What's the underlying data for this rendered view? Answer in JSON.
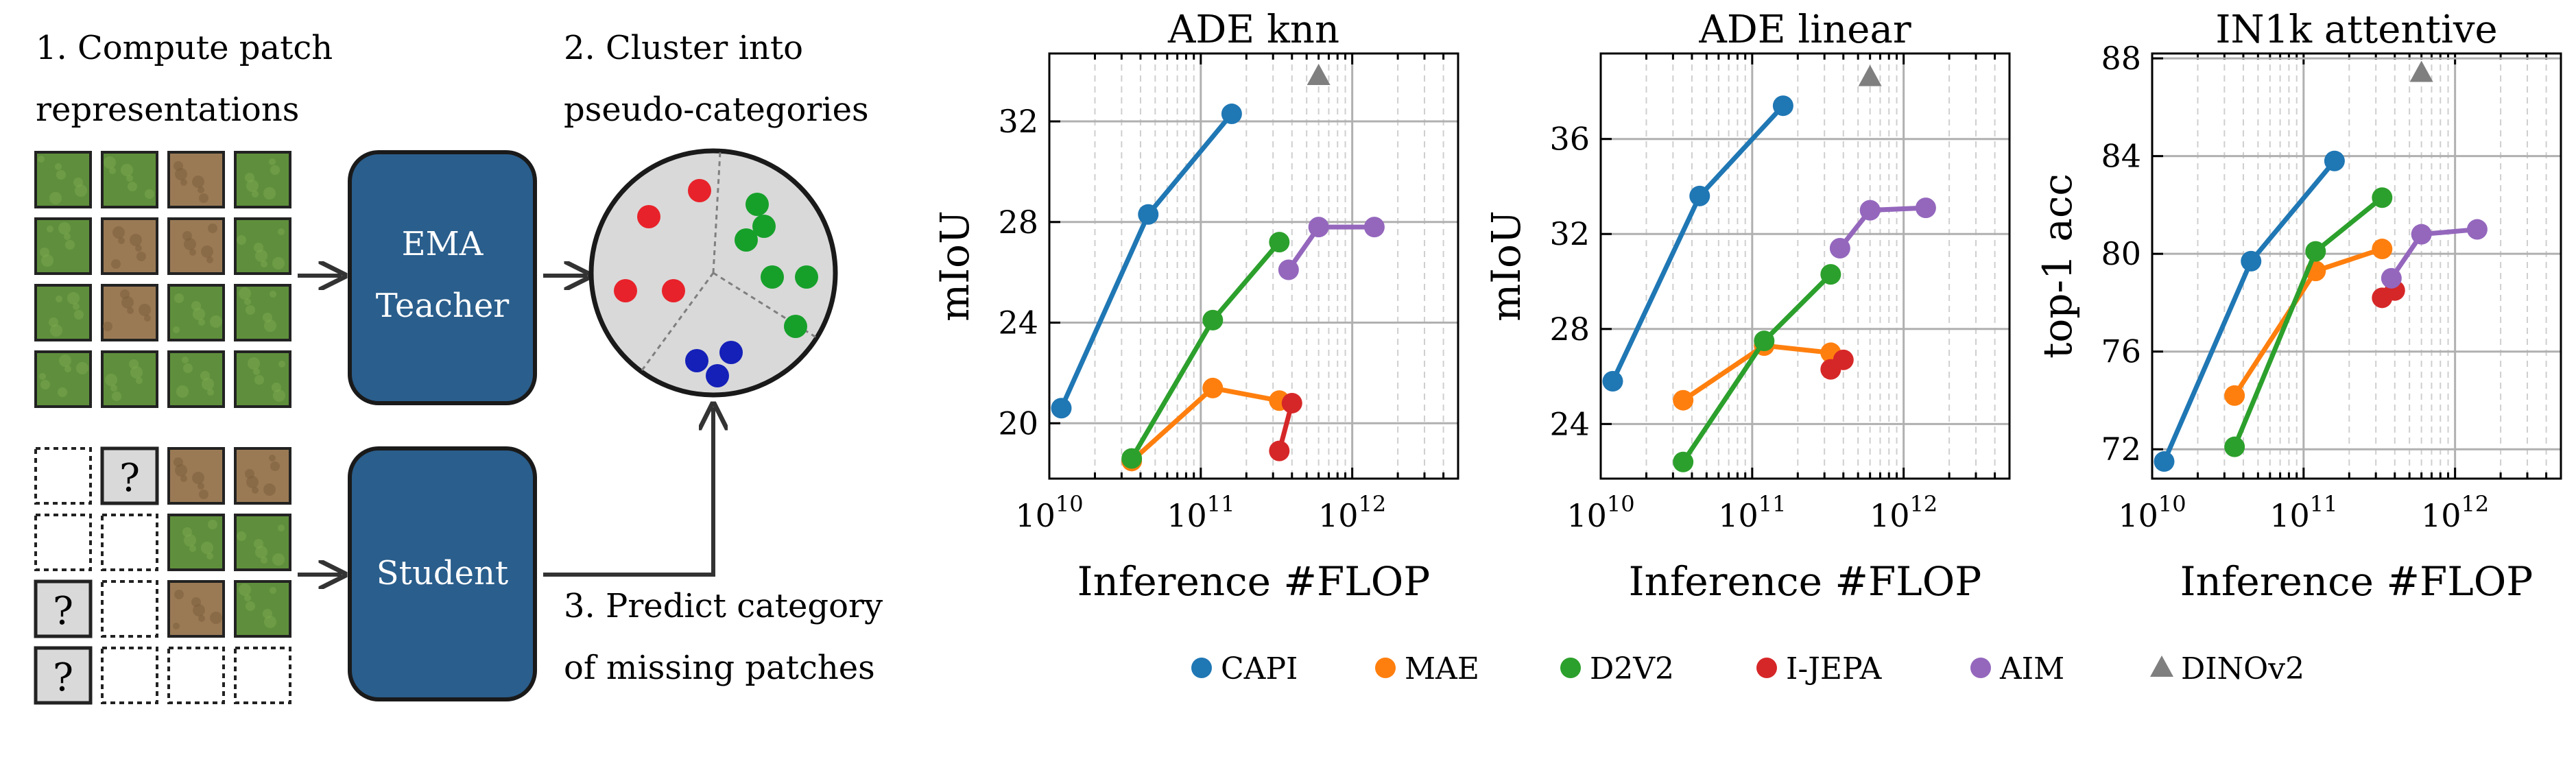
{
  "colors": {
    "CAPI": "#1f77b4",
    "MAE": "#ff7f0e",
    "D2V2": "#2ca02c",
    "I-JEPA": "#d62728",
    "AIM": "#9467bd",
    "DINOv2": "#7f7f7f",
    "box": "#2a5e8c",
    "circle_bg": "#d9d9d9",
    "grid": "#b0b0b0",
    "grass": "#5f8f3c",
    "fur": "#9a7a55",
    "q": "#d9d9d9"
  },
  "diagram": {
    "step1_line1": "1. Compute patch",
    "step1_line2": "representations",
    "step2_line1": "2. Cluster into",
    "step2_line2": "pseudo-categories",
    "step3_line1": "3. Predict category",
    "step3_line2": "of missing patches",
    "teacher_line1": "EMA",
    "teacher_line2": "Teacher",
    "student_label": "Student",
    "question_mark": "?",
    "top_grid": [
      [
        "grass",
        "grass",
        "fur",
        "grass"
      ],
      [
        "grass",
        "fur",
        "fur",
        "grass"
      ],
      [
        "grass",
        "fur",
        "grass",
        "grass"
      ],
      [
        "grass",
        "grass",
        "grass",
        "grass"
      ]
    ],
    "bottom_grid": [
      [
        "empty",
        "q",
        "fur",
        "fur"
      ],
      [
        "empty",
        "empty",
        "grass",
        "grass"
      ],
      [
        "q",
        "empty",
        "fur",
        "grass"
      ],
      [
        "q",
        "empty",
        "empty",
        "empty"
      ]
    ],
    "clusters": [
      {
        "color": "#e8222a",
        "count": 4
      },
      {
        "color": "#16a02a",
        "count": 6
      },
      {
        "color": "#1520b8",
        "count": 3
      }
    ]
  },
  "chart_data": [
    {
      "type": "line",
      "title": "ADE knn",
      "xlabel": "Inference #FLOP",
      "ylabel": "mIoU",
      "xscale": "log",
      "xlim": [
        10000000000.0,
        5000000000000.0
      ],
      "ylim": [
        17.8,
        34.7
      ],
      "yticks": [
        20,
        24,
        28,
        32
      ],
      "ytick_labels": [
        "20",
        "24",
        "28",
        "32"
      ],
      "xticks": [
        10000000000.0,
        100000000000.0,
        1000000000000.0
      ],
      "xtick_labels": [
        "10^10",
        "10^11",
        "10^12"
      ],
      "series": [
        {
          "name": "CAPI",
          "x": [
            12000000000.0,
            45000000000.0,
            160000000000.0
          ],
          "y": [
            20.6,
            28.3,
            32.3
          ]
        },
        {
          "name": "MAE",
          "x": [
            35000000000.0,
            120000000000.0,
            330000000000.0
          ],
          "y": [
            18.5,
            21.4,
            20.9
          ]
        },
        {
          "name": "D2V2",
          "x": [
            35000000000.0,
            120000000000.0,
            330000000000.0
          ],
          "y": [
            18.6,
            24.1,
            27.2
          ]
        },
        {
          "name": "I-JEPA",
          "x": [
            330000000000.0,
            400000000000.0
          ],
          "y": [
            18.9,
            20.8
          ]
        },
        {
          "name": "AIM",
          "x": [
            380000000000.0,
            600000000000.0,
            1400000000000.0
          ],
          "y": [
            26.1,
            27.8,
            27.8
          ]
        },
        {
          "name": "DINOv2",
          "marker": "triangle",
          "x": [
            600000000000.0
          ],
          "y": [
            33.8
          ]
        }
      ]
    },
    {
      "type": "line",
      "title": "ADE linear",
      "xlabel": "Inference #FLOP",
      "ylabel": "mIoU",
      "xscale": "log",
      "xlim": [
        10000000000.0,
        5000000000000.0
      ],
      "ylim": [
        21.7,
        39.6
      ],
      "yticks": [
        24,
        28,
        32,
        36
      ],
      "ytick_labels": [
        "24",
        "28",
        "32",
        "36"
      ],
      "xticks": [
        10000000000.0,
        100000000000.0,
        1000000000000.0
      ],
      "xtick_labels": [
        "10^10",
        "10^11",
        "10^12"
      ],
      "series": [
        {
          "name": "CAPI",
          "x": [
            12000000000.0,
            45000000000.0,
            160000000000.0
          ],
          "y": [
            25.8,
            33.6,
            37.4
          ]
        },
        {
          "name": "MAE",
          "x": [
            35000000000.0,
            120000000000.0,
            330000000000.0
          ],
          "y": [
            25.0,
            27.3,
            27.0
          ]
        },
        {
          "name": "D2V2",
          "x": [
            35000000000.0,
            120000000000.0,
            330000000000.0
          ],
          "y": [
            22.4,
            27.5,
            30.3
          ]
        },
        {
          "name": "I-JEPA",
          "x": [
            330000000000.0,
            400000000000.0
          ],
          "y": [
            26.3,
            26.7
          ]
        },
        {
          "name": "AIM",
          "x": [
            380000000000.0,
            600000000000.0,
            1400000000000.0
          ],
          "y": [
            31.4,
            33.0,
            33.1
          ]
        },
        {
          "name": "DINOv2",
          "marker": "triangle",
          "x": [
            600000000000.0
          ],
          "y": [
            38.6
          ]
        }
      ]
    },
    {
      "type": "line",
      "title": "IN1k attentive",
      "xlabel": "Inference #FLOP",
      "ylabel": "top-1 acc",
      "xscale": "log",
      "xlim": [
        10000000000.0,
        5000000000000.0
      ],
      "ylim": [
        70.8,
        88.2
      ],
      "yticks": [
        72,
        76,
        80,
        84,
        88
      ],
      "ytick_labels": [
        "72",
        "76",
        "80",
        "84",
        "88"
      ],
      "xticks": [
        10000000000.0,
        100000000000.0,
        1000000000000.0
      ],
      "xtick_labels": [
        "10^10",
        "10^11",
        "10^12"
      ],
      "series": [
        {
          "name": "CAPI",
          "x": [
            12000000000.0,
            45000000000.0,
            160000000000.0
          ],
          "y": [
            71.5,
            79.7,
            83.8
          ]
        },
        {
          "name": "MAE",
          "x": [
            35000000000.0,
            120000000000.0,
            330000000000.0
          ],
          "y": [
            74.2,
            79.3,
            80.2
          ]
        },
        {
          "name": "D2V2",
          "x": [
            35000000000.0,
            120000000000.0,
            330000000000.0
          ],
          "y": [
            72.1,
            80.1,
            82.3
          ]
        },
        {
          "name": "I-JEPA",
          "x": [
            330000000000.0,
            400000000000.0
          ],
          "y": [
            78.2,
            78.5
          ]
        },
        {
          "name": "AIM",
          "x": [
            380000000000.0,
            600000000000.0,
            1400000000000.0
          ],
          "y": [
            79.0,
            80.8,
            81.0
          ]
        },
        {
          "name": "DINOv2",
          "marker": "triangle",
          "x": [
            600000000000.0
          ],
          "y": [
            87.4
          ]
        }
      ]
    }
  ],
  "legend": [
    {
      "name": "CAPI",
      "marker": "circle"
    },
    {
      "name": "MAE",
      "marker": "circle"
    },
    {
      "name": "D2V2",
      "marker": "circle"
    },
    {
      "name": "I-JEPA",
      "marker": "circle"
    },
    {
      "name": "AIM",
      "marker": "circle"
    },
    {
      "name": "DINOv2",
      "marker": "triangle"
    }
  ]
}
